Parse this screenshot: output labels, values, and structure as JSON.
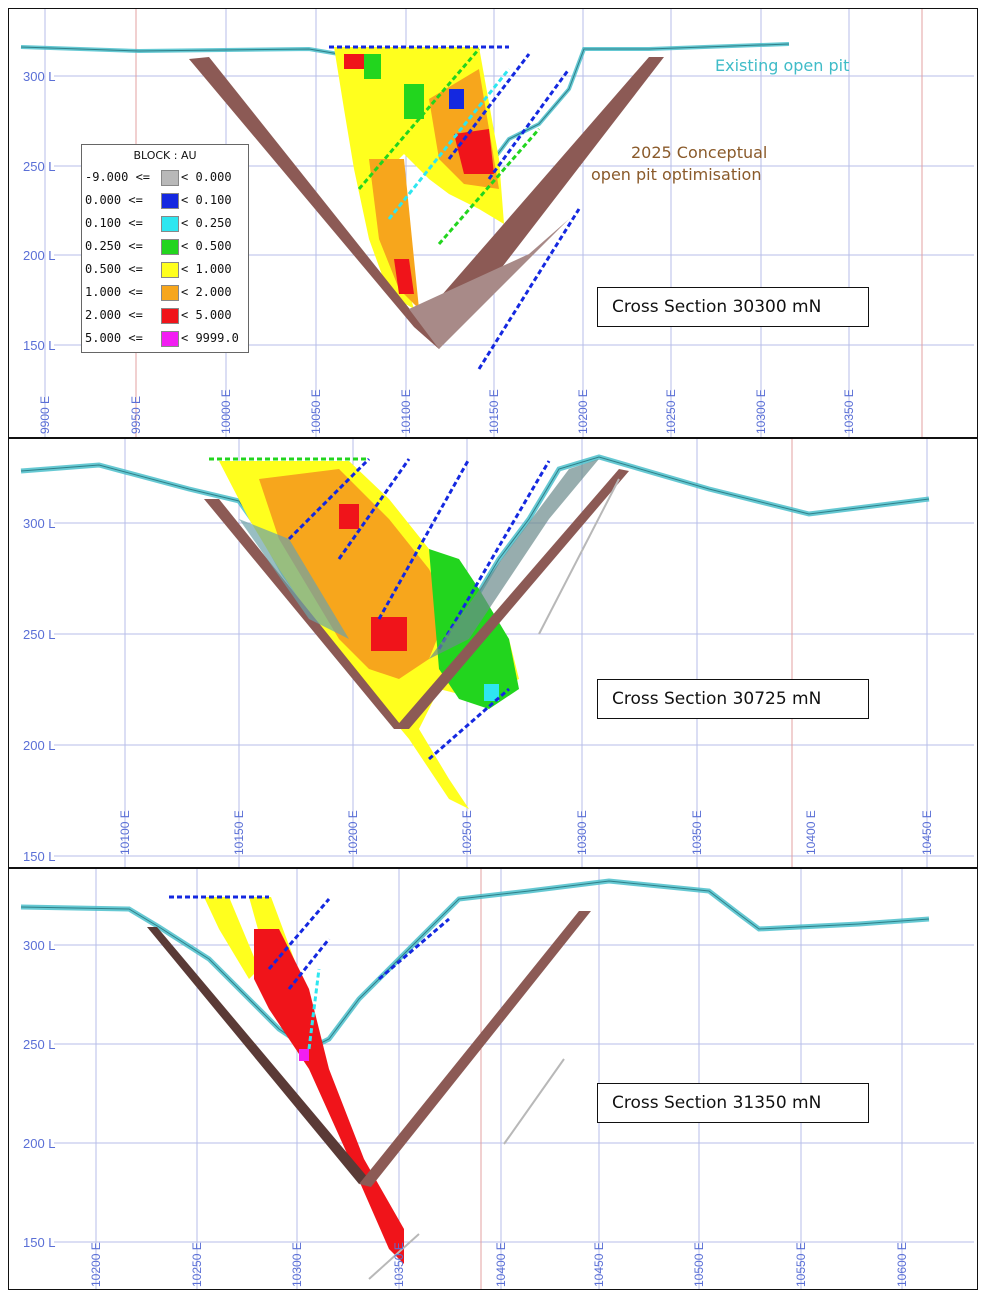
{
  "figure": {
    "panels": [
      {
        "section_label": "Cross Section 30300 mN",
        "level_labels": [
          "300 L",
          "250 L",
          "200 L",
          "150 L"
        ],
        "easting_labels": [
          "9900 E",
          "9950 E",
          "10000 E",
          "10050 E",
          "10100 E",
          "10150 E",
          "10200 E",
          "10250 E",
          "10300 E",
          "10350 E"
        ]
      },
      {
        "section_label": "Cross Section 30725 mN",
        "level_labels": [
          "300 L",
          "250 L",
          "200 L",
          "150 L"
        ],
        "easting_labels": [
          "10100 E",
          "10150 E",
          "10200 E",
          "10250 E",
          "10300 E",
          "10350 E",
          "10400 E",
          "10450 E"
        ]
      },
      {
        "section_label": "Cross Section 31350 mN",
        "level_labels": [
          "300 L",
          "250 L",
          "200 L",
          "150 L"
        ],
        "easting_labels": [
          "10200 E",
          "10250 E",
          "10300 E",
          "10350 E",
          "10400 E",
          "10450 E",
          "10500 E",
          "10550 E",
          "10600 E"
        ]
      }
    ],
    "annotations": {
      "existing_pit": "Existing open pit",
      "conceptual_pit_line1": "2025 Conceptual",
      "conceptual_pit_line2": "open pit optimisation"
    },
    "legend": {
      "title": "BLOCK : AU",
      "rows": [
        {
          "low": "-9.000 <=",
          "high": "< 0.000",
          "color": "#b8b8b8"
        },
        {
          "low": "0.000 <=",
          "high": "< 0.100",
          "color": "#1428e0"
        },
        {
          "low": "0.100 <=",
          "high": "< 0.250",
          "color": "#2ee6f0"
        },
        {
          "low": "0.250 <=",
          "high": "< 0.500",
          "color": "#22d51e"
        },
        {
          "low": "0.500 <=",
          "high": "< 1.000",
          "color": "#ffff1e"
        },
        {
          "low": "1.000 <=",
          "high": "< 2.000",
          "color": "#f7a61c"
        },
        {
          "low": "2.000 <=",
          "high": "< 5.000",
          "color": "#f0141a"
        },
        {
          "low": "5.000 <=",
          "high": "< 9999.0",
          "color": "#f21ef2"
        }
      ]
    },
    "colors": {
      "existing_pit": "#40bcc8",
      "conceptual_pit": "#8c5a55",
      "grid_axis": "#5a6fd6",
      "annot_conceptual": "#8a5a2a"
    }
  }
}
